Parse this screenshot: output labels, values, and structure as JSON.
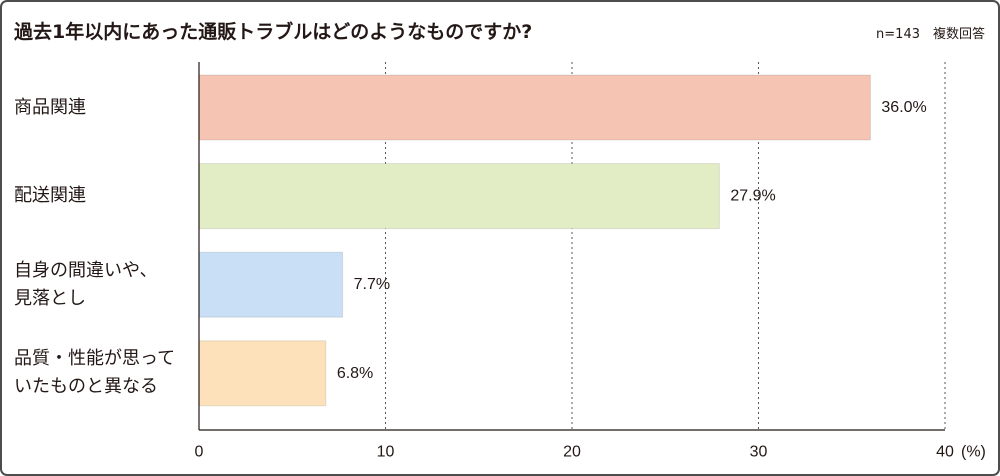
{
  "chart_data": {
    "type": "bar",
    "orientation": "horizontal",
    "title": "過去1年以内にあった通販トラブルはどのようなものですか?",
    "note": "n=143　複数回答",
    "categories": [
      "商品関連",
      "配送関連",
      "自身の間違いや、\n見落とし",
      "品質・性能が思って\nいたものと異なる"
    ],
    "values": [
      36.0,
      27.9,
      7.7,
      6.8
    ],
    "data_labels": [
      "36.0%",
      "27.9%",
      "7.7%",
      "6.8%"
    ],
    "colors": [
      "#F5C4B3",
      "#E2EDC5",
      "#C9DFF5",
      "#FCE1BA"
    ],
    "xlim": [
      0,
      40
    ],
    "xticks": [
      0,
      10,
      20,
      30,
      40
    ],
    "xlabel": "(%)",
    "grid": true
  }
}
